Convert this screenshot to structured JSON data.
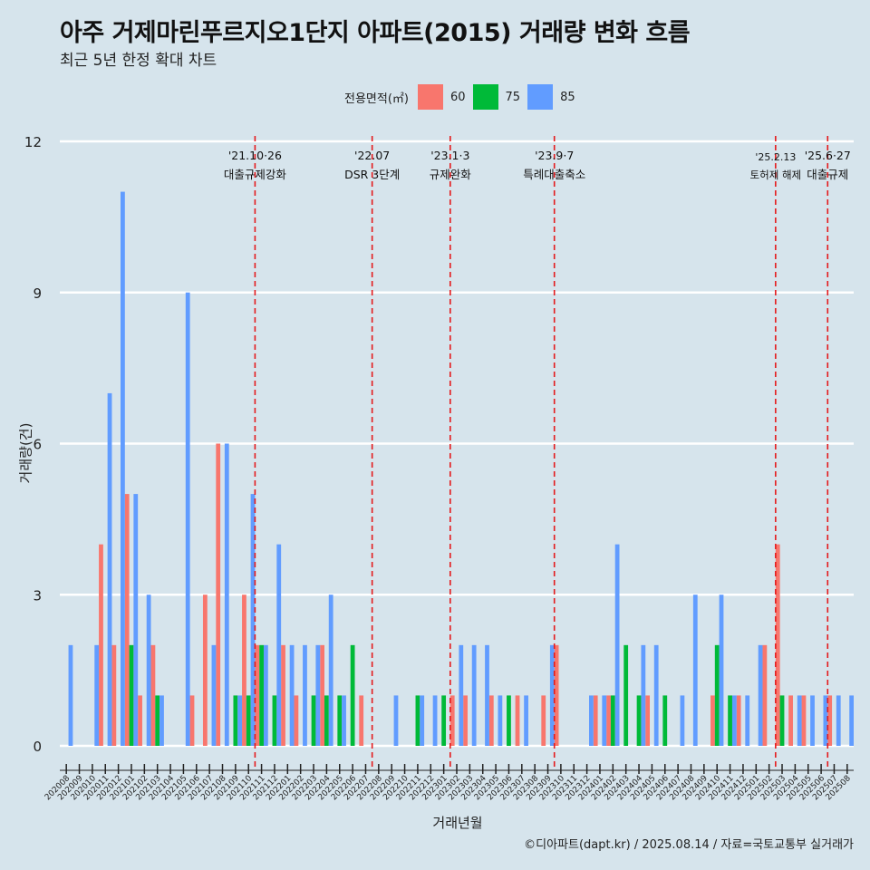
{
  "title": "아주 거제마린푸르지오1단지 아파트(2015) 거래량 변화 흐름",
  "subtitle": "최근 5년 한정 확대 차트",
  "caption": "©디아파트(dapt.kr) / 2025.08.14 / 자료=국토교통부 실거래가",
  "legend": {
    "title": "전용면적(㎡)",
    "items": [
      {
        "label": "60",
        "color": "#f8766d"
      },
      {
        "label": "75",
        "color": "#00ba38"
      },
      {
        "label": "85",
        "color": "#619cff"
      }
    ]
  },
  "chart_data": {
    "type": "bar",
    "xlabel": "거래년월",
    "ylabel": "거래량(건)",
    "ylim": [
      0,
      12
    ],
    "yticks": [
      0,
      3,
      6,
      9,
      12
    ],
    "categories": [
      "202008",
      "202009",
      "202010",
      "202011",
      "202012",
      "202101",
      "202102",
      "202103",
      "202104",
      "202105",
      "202106",
      "202107",
      "202108",
      "202109",
      "202110",
      "202111",
      "202112",
      "202201",
      "202202",
      "202203",
      "202204",
      "202205",
      "202206",
      "202207",
      "202208",
      "202209",
      "202210",
      "202211",
      "202212",
      "202301",
      "202302",
      "202303",
      "202304",
      "202305",
      "202306",
      "202307",
      "202308",
      "202309",
      "202310",
      "202311",
      "202312",
      "202401",
      "202402",
      "202403",
      "202404",
      "202405",
      "202406",
      "202407",
      "202408",
      "202409",
      "202410",
      "202411",
      "202412",
      "202501",
      "202502",
      "202503",
      "202504",
      "202505",
      "202506",
      "202507",
      "202508"
    ],
    "series": [
      {
        "name": "60",
        "color": "#f8766d",
        "values": [
          0,
          0,
          0,
          4,
          2,
          5,
          1,
          2,
          0,
          0,
          1,
          3,
          6,
          0,
          3,
          2,
          0,
          2,
          1,
          0,
          2,
          0,
          0,
          1,
          0,
          0,
          0,
          0,
          0,
          0,
          1,
          1,
          0,
          1,
          0,
          1,
          0,
          1,
          2,
          0,
          0,
          1,
          1,
          0,
          0,
          1,
          0,
          0,
          0,
          0,
          1,
          0,
          1,
          0,
          2,
          4,
          1,
          1,
          0,
          1,
          0
        ]
      },
      {
        "name": "75",
        "color": "#00ba38",
        "values": [
          0,
          0,
          0,
          0,
          0,
          2,
          0,
          1,
          0,
          0,
          0,
          0,
          0,
          1,
          1,
          2,
          1,
          0,
          0,
          1,
          1,
          1,
          2,
          0,
          0,
          0,
          0,
          1,
          0,
          1,
          0,
          0,
          0,
          0,
          1,
          0,
          0,
          0,
          0,
          0,
          0,
          0,
          1,
          2,
          1,
          0,
          1,
          0,
          0,
          0,
          2,
          1,
          0,
          0,
          0,
          1,
          0,
          0,
          0,
          0,
          0
        ]
      },
      {
        "name": "85",
        "color": "#619cff",
        "values": [
          2,
          0,
          2,
          7,
          11,
          5,
          3,
          1,
          0,
          9,
          0,
          2,
          6,
          1,
          5,
          2,
          4,
          2,
          2,
          2,
          3,
          1,
          0,
          0,
          0,
          1,
          0,
          1,
          1,
          0,
          2,
          2,
          2,
          1,
          0,
          1,
          0,
          2,
          0,
          0,
          1,
          1,
          4,
          0,
          2,
          2,
          0,
          1,
          3,
          0,
          3,
          1,
          1,
          2,
          0,
          0,
          1,
          1,
          1,
          1,
          1
        ]
      }
    ],
    "events": [
      {
        "after": "202110",
        "date": "'21.10·26",
        "label": "대출규제강화"
      },
      {
        "after": "202207",
        "date": "'22.07",
        "label": "DSR 3단계"
      },
      {
        "after": "202301",
        "date": "'23.1·3",
        "label": "규제완화"
      },
      {
        "after": "202309",
        "date": "'23.9·7",
        "label": "특례대출축소"
      },
      {
        "after": "202502",
        "date": "'25.2.13",
        "label": "토허제 해제"
      },
      {
        "after": "202506",
        "date": "'25.6·27",
        "label": "대출규제"
      }
    ]
  }
}
